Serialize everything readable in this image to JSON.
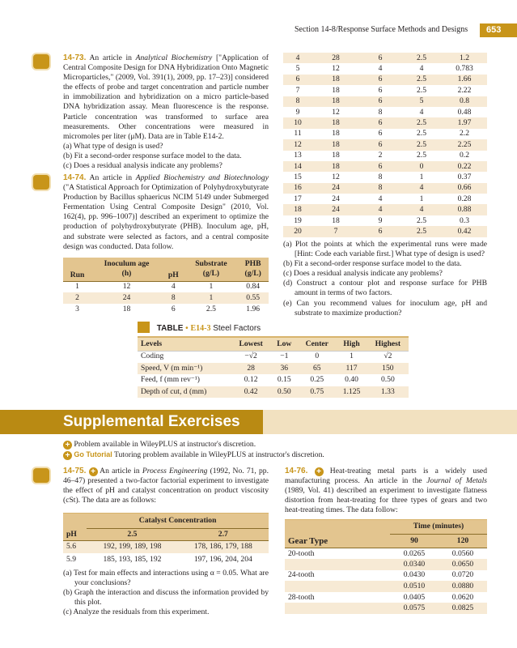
{
  "header": {
    "section": "Section 14-8/Response Surface Methods and Designs",
    "page": "653"
  },
  "ex73": {
    "num": "14-73.",
    "text_a": "An article in ",
    "journal": "Analytical Biochemistry",
    "text_b": " [\"Application of Central Composite Design for DNA Hybridization Onto Magnetic Microparticles,\" (2009, Vol. 391(1), 2009, pp. 17–23)] considered the effects of probe and target concentration and particle number in immobilization and hybridization on a micro particle-based DNA hybridization assay. Mean fluorescence is the response. Particle concentration was transformed to surface area measurements. Other concentrations were measured in micromoles per liter (μM). Data are in Table E14-2.",
    "parts": [
      "(a) What type of design is used?",
      "(b) Fit a second-order response surface model to the data.",
      "(c) Does a residual analysis indicate any problems?"
    ]
  },
  "ex74": {
    "num": "14-74.",
    "text_a": "An article in ",
    "journal": "Applied Biochemistry and Biotechnology",
    "text_b": " (\"A Statistical Approach for Optimization of Polyhydroxybutyrate Production by Bacillus sphaericus NCIM 5149 under Submerged Fermentation Using Central Composite Design\" (2010, Vol. 162(4), pp. 996–1007)] described an experiment to optimize the production of polyhydroxybutyrate (PHB). Inoculum age, pH, and substrate were selected as factors, and a central composite design was conducted. Data follow.",
    "headers": [
      [
        "Run",
        ""
      ],
      [
        "Inoculum age",
        "(h)"
      ],
      [
        "pH",
        ""
      ],
      [
        "Substrate",
        "(g/L)"
      ],
      [
        "PHB",
        "(g/L)"
      ]
    ],
    "rows": [
      [
        "1",
        "12",
        "4",
        "1",
        "0.84"
      ],
      [
        "2",
        "24",
        "8",
        "1",
        "0.55"
      ],
      [
        "3",
        "18",
        "6",
        "2.5",
        "1.96"
      ],
      [
        "4",
        "28",
        "6",
        "2.5",
        "1.2"
      ],
      [
        "5",
        "12",
        "4",
        "4",
        "0.783"
      ],
      [
        "6",
        "18",
        "6",
        "2.5",
        "1.66"
      ],
      [
        "7",
        "18",
        "6",
        "2.5",
        "2.22"
      ],
      [
        "8",
        "18",
        "6",
        "5",
        "0.8"
      ],
      [
        "9",
        "12",
        "8",
        "4",
        "0.48"
      ],
      [
        "10",
        "18",
        "6",
        "2.5",
        "1.97"
      ],
      [
        "11",
        "18",
        "6",
        "2.5",
        "2.2"
      ],
      [
        "12",
        "18",
        "6",
        "2.5",
        "2.25"
      ],
      [
        "13",
        "18",
        "2",
        "2.5",
        "0.2"
      ],
      [
        "14",
        "18",
        "6",
        "0",
        "0.22"
      ],
      [
        "15",
        "12",
        "8",
        "1",
        "0.37"
      ],
      [
        "16",
        "24",
        "8",
        "4",
        "0.66"
      ],
      [
        "17",
        "24",
        "4",
        "1",
        "0.28"
      ],
      [
        "18",
        "24",
        "4",
        "4",
        "0.88"
      ],
      [
        "19",
        "18",
        "9",
        "2.5",
        "0.3"
      ],
      [
        "20",
        "7",
        "6",
        "2.5",
        "0.42"
      ]
    ],
    "parts": [
      "(a) Plot the points at which the experimental runs were made [Hint: Code each variable first.] What type of design is used?",
      "(b) Fit a second-order response surface model to the data.",
      "(c) Does a residual analysis indicate any problems?",
      "(d) Construct a contour plot and response surface for PHB amount in terms of two factors.",
      "(e) Can you recommend values for inoculum age, pH and substrate to maximize production?"
    ]
  },
  "tableE143": {
    "label": "TABLE",
    "id": "E14-3",
    "title": "Steel Factors",
    "headers": [
      "Levels",
      "Lowest",
      "Low",
      "Center",
      "High",
      "Highest"
    ],
    "rows": [
      [
        "Coding",
        "−√2",
        "−1",
        "0",
        "1",
        "√2"
      ],
      [
        "Speed, V (m min⁻¹)",
        "28",
        "36",
        "65",
        "117",
        "150"
      ],
      [
        "Feed, f (mm rev⁻¹)",
        "0.12",
        "0.15",
        "0.25",
        "0.40",
        "0.50"
      ],
      [
        "Depth of cut, d (mm)",
        "0.42",
        "0.50",
        "0.75",
        "1.125",
        "1.33"
      ]
    ]
  },
  "supplemental": {
    "title": "Supplemental Exercises",
    "legend1": "Problem available in WileyPLUS at instructor's discretion.",
    "go_tutorial": "Go Tutorial",
    "legend2": "Tutoring problem available in WileyPLUS at instructor's discretion.",
    "accent": "#c8951a"
  },
  "ex75": {
    "num": "14-75.",
    "text_a": "An article in ",
    "journal": "Process Engineering",
    "text_b": " (1992, No. 71, pp. 46–47) presented a two-factor factorial experiment to investigate the effect of pH and catalyst concentration on product viscosity (cSt). The data are as follows:",
    "group_header": "Catalyst Concentration",
    "row_header": "pH",
    "cols": [
      "2.5",
      "2.7"
    ],
    "rows": [
      [
        "5.6",
        "192, 199, 189, 198",
        "178, 186, 179, 188"
      ],
      [
        "5.9",
        "185, 193, 185, 192",
        "197, 196, 204, 204"
      ]
    ],
    "parts": [
      "(a) Test for main effects and interactions using α = 0.05. What are your conclusions?",
      "(b) Graph the interaction and discuss the information provided by this plot.",
      "(c) Analyze the residuals from this experiment."
    ]
  },
  "ex76": {
    "num": "14-76.",
    "text_a": "Heat-treating metal parts is a widely used manufacturing process. An article in the ",
    "journal": "Journal of Metals",
    "text_b": " (1989, Vol. 41) described an experiment to investigate flatness distortion from heat-treating for three types of gears and two heat-treating times. The data follow:",
    "group_header": "Time (minutes)",
    "row_header": "Gear Type",
    "cols": [
      "90",
      "120"
    ],
    "rows": [
      [
        "20-tooth",
        "0.0265",
        "0.0560"
      ],
      [
        "",
        "0.0340",
        "0.0650"
      ],
      [
        "24-tooth",
        "0.0430",
        "0.0720"
      ],
      [
        "",
        "0.0510",
        "0.0880"
      ],
      [
        "28-tooth",
        "0.0405",
        "0.0620"
      ],
      [
        "",
        "0.0575",
        "0.0825"
      ]
    ]
  }
}
